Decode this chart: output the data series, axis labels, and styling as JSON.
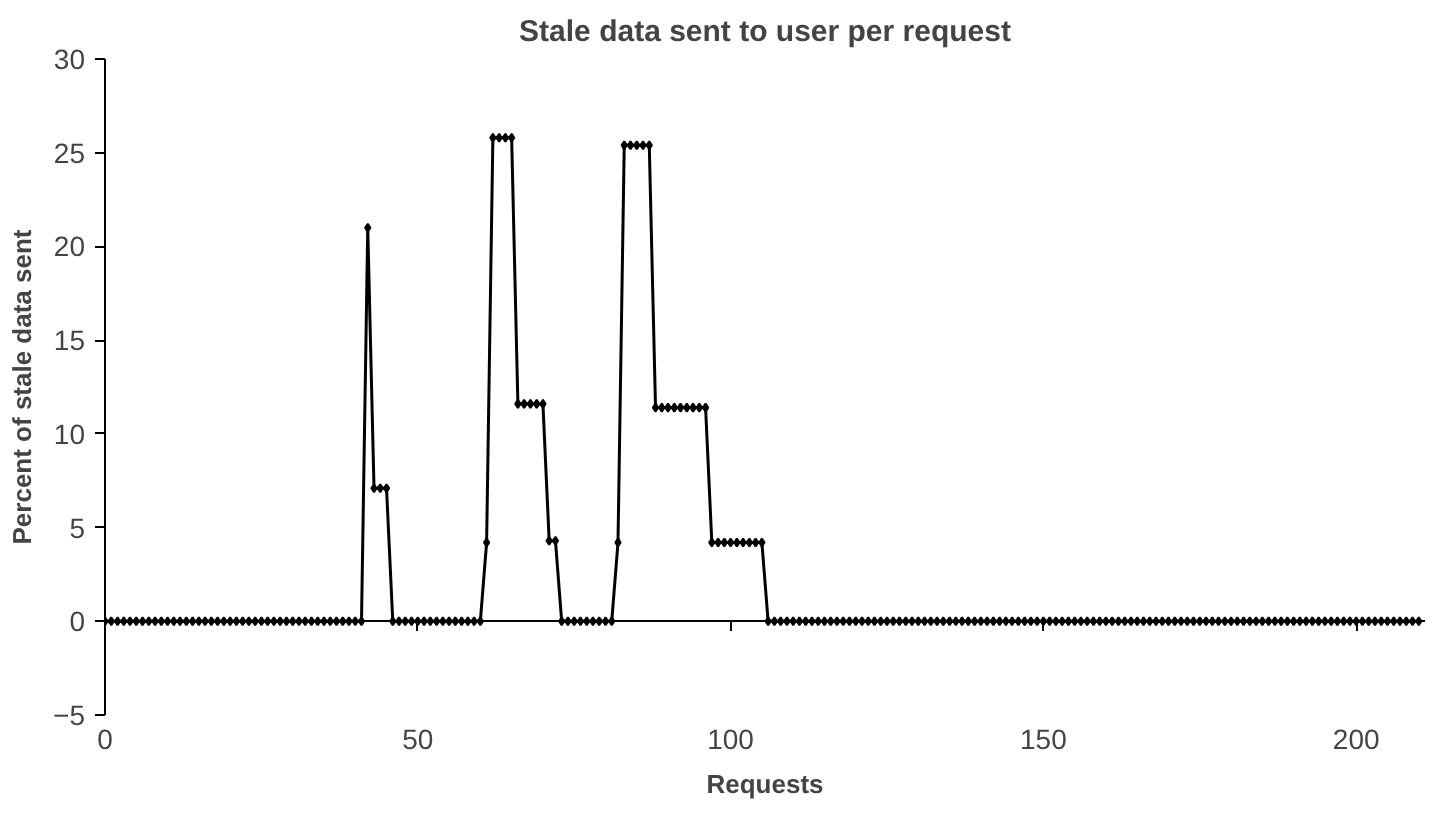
{
  "chart_data": {
    "type": "line",
    "title": "Stale data sent to user per request",
    "xlabel": "Requests",
    "ylabel": "Percent of stale data sent",
    "x": [
      0,
      1,
      2,
      3,
      4,
      5,
      6,
      7,
      8,
      9,
      10,
      11,
      12,
      13,
      14,
      15,
      16,
      17,
      18,
      19,
      20,
      21,
      22,
      23,
      24,
      25,
      26,
      27,
      28,
      29,
      30,
      31,
      32,
      33,
      34,
      35,
      36,
      37,
      38,
      39,
      40,
      41,
      42,
      43,
      44,
      45,
      46,
      47,
      48,
      49,
      50,
      51,
      52,
      53,
      54,
      55,
      56,
      57,
      58,
      59,
      60,
      61,
      62,
      63,
      64,
      65,
      66,
      67,
      68,
      69,
      70,
      71,
      72,
      73,
      74,
      75,
      76,
      77,
      78,
      79,
      80,
      81,
      82,
      83,
      84,
      85,
      86,
      87,
      88,
      89,
      90,
      91,
      92,
      93,
      94,
      95,
      96,
      97,
      98,
      99,
      100,
      101,
      102,
      103,
      104,
      105,
      106,
      107,
      108,
      109,
      110,
      111,
      112,
      113,
      114,
      115,
      116,
      117,
      118,
      119,
      120,
      121,
      122,
      123,
      124,
      125,
      126,
      127,
      128,
      129,
      130,
      131,
      132,
      133,
      134,
      135,
      136,
      137,
      138,
      139,
      140,
      141,
      142,
      143,
      144,
      145,
      146,
      147,
      148,
      149,
      150,
      151,
      152,
      153,
      154,
      155,
      156,
      157,
      158,
      159,
      160,
      161,
      162,
      163,
      164,
      165,
      166,
      167,
      168,
      169,
      170,
      171,
      172,
      173,
      174,
      175,
      176,
      177,
      178,
      179,
      180,
      181,
      182,
      183,
      184,
      185,
      186,
      187,
      188,
      189,
      190,
      191,
      192,
      193,
      194,
      195,
      196,
      197,
      198,
      199,
      200,
      201,
      202,
      203,
      204,
      205,
      206,
      207,
      208,
      209,
      210
    ],
    "series": [
      {
        "color": "#000000",
        "values": [
          0,
          0,
          0,
          0,
          0,
          0,
          0,
          0,
          0,
          0,
          0,
          0,
          0,
          0,
          0,
          0,
          0,
          0,
          0,
          0,
          0,
          0,
          0,
          0,
          0,
          0,
          0,
          0,
          0,
          0,
          0,
          0,
          0,
          0,
          0,
          0,
          0,
          0,
          0,
          0,
          0,
          0,
          21,
          7.1,
          7.1,
          7.1,
          0,
          0,
          0,
          0,
          0,
          0,
          0,
          0,
          0,
          0,
          0,
          0,
          0,
          0,
          0,
          4.2,
          25.8,
          25.8,
          25.8,
          25.8,
          11.6,
          11.6,
          11.6,
          11.6,
          11.6,
          4.3,
          4.3,
          0,
          0,
          0,
          0,
          0,
          0,
          0,
          0,
          0,
          4.2,
          25.4,
          25.4,
          25.4,
          25.4,
          25.4,
          11.4,
          11.4,
          11.4,
          11.4,
          11.4,
          11.4,
          11.4,
          11.4,
          11.4,
          4.2,
          4.2,
          4.2,
          4.2,
          4.2,
          4.2,
          4.2,
          4.2,
          4.2,
          0,
          0,
          0,
          0,
          0,
          0,
          0,
          0,
          0,
          0,
          0,
          0,
          0,
          0,
          0,
          0,
          0,
          0,
          0,
          0,
          0,
          0,
          0,
          0,
          0,
          0,
          0,
          0,
          0,
          0,
          0,
          0,
          0,
          0,
          0,
          0,
          0,
          0,
          0,
          0,
          0,
          0,
          0,
          0,
          0,
          0,
          0,
          0,
          0,
          0,
          0,
          0,
          0,
          0,
          0,
          0,
          0,
          0,
          0,
          0,
          0,
          0,
          0,
          0,
          0,
          0,
          0,
          0,
          0,
          0,
          0,
          0,
          0,
          0,
          0,
          0,
          0,
          0,
          0,
          0,
          0,
          0,
          0,
          0,
          0,
          0,
          0,
          0,
          0,
          0,
          0,
          0,
          0,
          0,
          0,
          0,
          0,
          0,
          0,
          0,
          0,
          0,
          0,
          0,
          0
        ]
      }
    ],
    "xlim": [
      0,
      211
    ],
    "ylim": [
      -5,
      30
    ],
    "xticks": [
      0,
      50,
      100,
      150,
      200
    ],
    "yticks": [
      -5,
      0,
      5,
      10,
      15,
      20,
      25,
      30
    ],
    "marker": "diamond",
    "line_style": "solid"
  }
}
